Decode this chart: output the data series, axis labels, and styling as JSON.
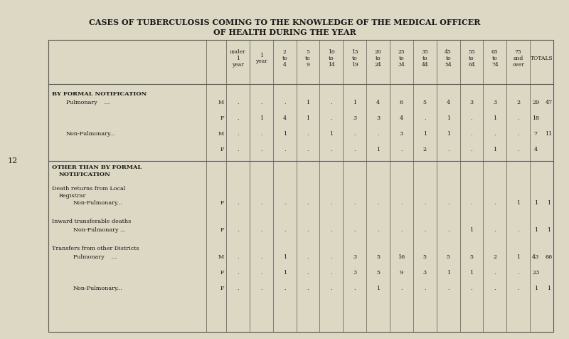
{
  "title_line1": "CASES OF TUBERCULOSIS COMING TO THE KNOWLEDGE OF THE MEDICAL OFFICER",
  "title_line2": "OF HEALTH DURING THE YEAR",
  "bg_color": "#ddd8c4",
  "page_number": "12",
  "col_headers": [
    "under\n1\nyear",
    "1\nyear",
    "2\nto\n4",
    "5\nto\n9",
    "10\nto\n14",
    "15\nto\n19",
    "20\nto\n24",
    "25\nto\n34",
    "35\nto\n44",
    "45\nto\n54",
    "55\nto\n64",
    "65\nto\n74",
    "75\nand\nover",
    "TOTALS"
  ],
  "section1_header": "BY FORMAL NOTIFICATION",
  "rows_section1": [
    {
      "label": "Pulmonary    ...",
      "sub": "M",
      "data": [
        ".",
        ".",
        ".",
        "1",
        ".",
        "1",
        "4",
        "6",
        "5",
        "4",
        "3",
        "3",
        "2",
        "29"
      ],
      "extra": "47"
    },
    {
      "label": "",
      "sub": "F",
      "data": [
        ".",
        "1",
        "4",
        "1",
        ".",
        "3",
        "3",
        "4",
        ".",
        "1",
        ".",
        "1",
        ".",
        "18"
      ],
      "extra": ""
    },
    {
      "label": "Non-Pulmonary...",
      "sub": "M",
      "data": [
        ".",
        ".",
        "1",
        ".",
        "1",
        ".",
        ".",
        "3",
        "1",
        "1",
        ".",
        ".",
        ".",
        "7"
      ],
      "extra": "11"
    },
    {
      "label": "",
      "sub": "F",
      "data": [
        ".",
        ".",
        ".",
        ".",
        ".",
        ".",
        "1",
        ".",
        "2",
        ".",
        ".",
        "1",
        ".",
        "4"
      ],
      "extra": ""
    }
  ],
  "section2_header_line1": "OTHER THAN BY FORMAL",
  "section2_header_line2": "NOTIFICATION",
  "sub_section2a_line1": "Death returns from Local",
  "sub_section2a_line2": "Registrar",
  "rows_section2a": [
    {
      "label": "Non-Pulmonary...",
      "sub": "F",
      "data": [
        ".",
        ".",
        ".",
        ".",
        ".",
        ".",
        ".",
        ".",
        ".",
        ".",
        ".",
        ".",
        "1",
        "1"
      ],
      "extra": "1"
    }
  ],
  "sub_section2b": "Inward transferable deaths",
  "rows_section2b": [
    {
      "label": "Non-Pulmonary ...",
      "sub": "F",
      "data": [
        ".",
        ".",
        ".",
        ".",
        ".",
        ".",
        ".",
        ".",
        ".",
        ".",
        "1",
        ".",
        ".",
        "1"
      ],
      "extra": "1"
    }
  ],
  "sub_section2c": "Transfers from other Districts",
  "rows_section2c": [
    {
      "label": "Pulmonary    ...",
      "sub": "M",
      "data": [
        ".",
        ".",
        "1",
        ".",
        ".",
        "3",
        "5",
        "16",
        "5",
        "5",
        "5",
        "2",
        "1",
        "43"
      ],
      "extra": "66"
    },
    {
      "label": "",
      "sub": "F",
      "data": [
        ".",
        ".",
        "1",
        ".",
        ".",
        "3",
        "5",
        "9",
        "3",
        "1",
        "1",
        ".",
        ".",
        "23"
      ],
      "extra": ""
    },
    {
      "label": "Non-Pulmonary...",
      "sub": "F",
      "data": [
        ".",
        ".",
        ".",
        ".",
        ".",
        ".",
        "1",
        ".",
        ".",
        ".",
        ".",
        ".",
        ".",
        "1"
      ],
      "extra": "1"
    }
  ]
}
